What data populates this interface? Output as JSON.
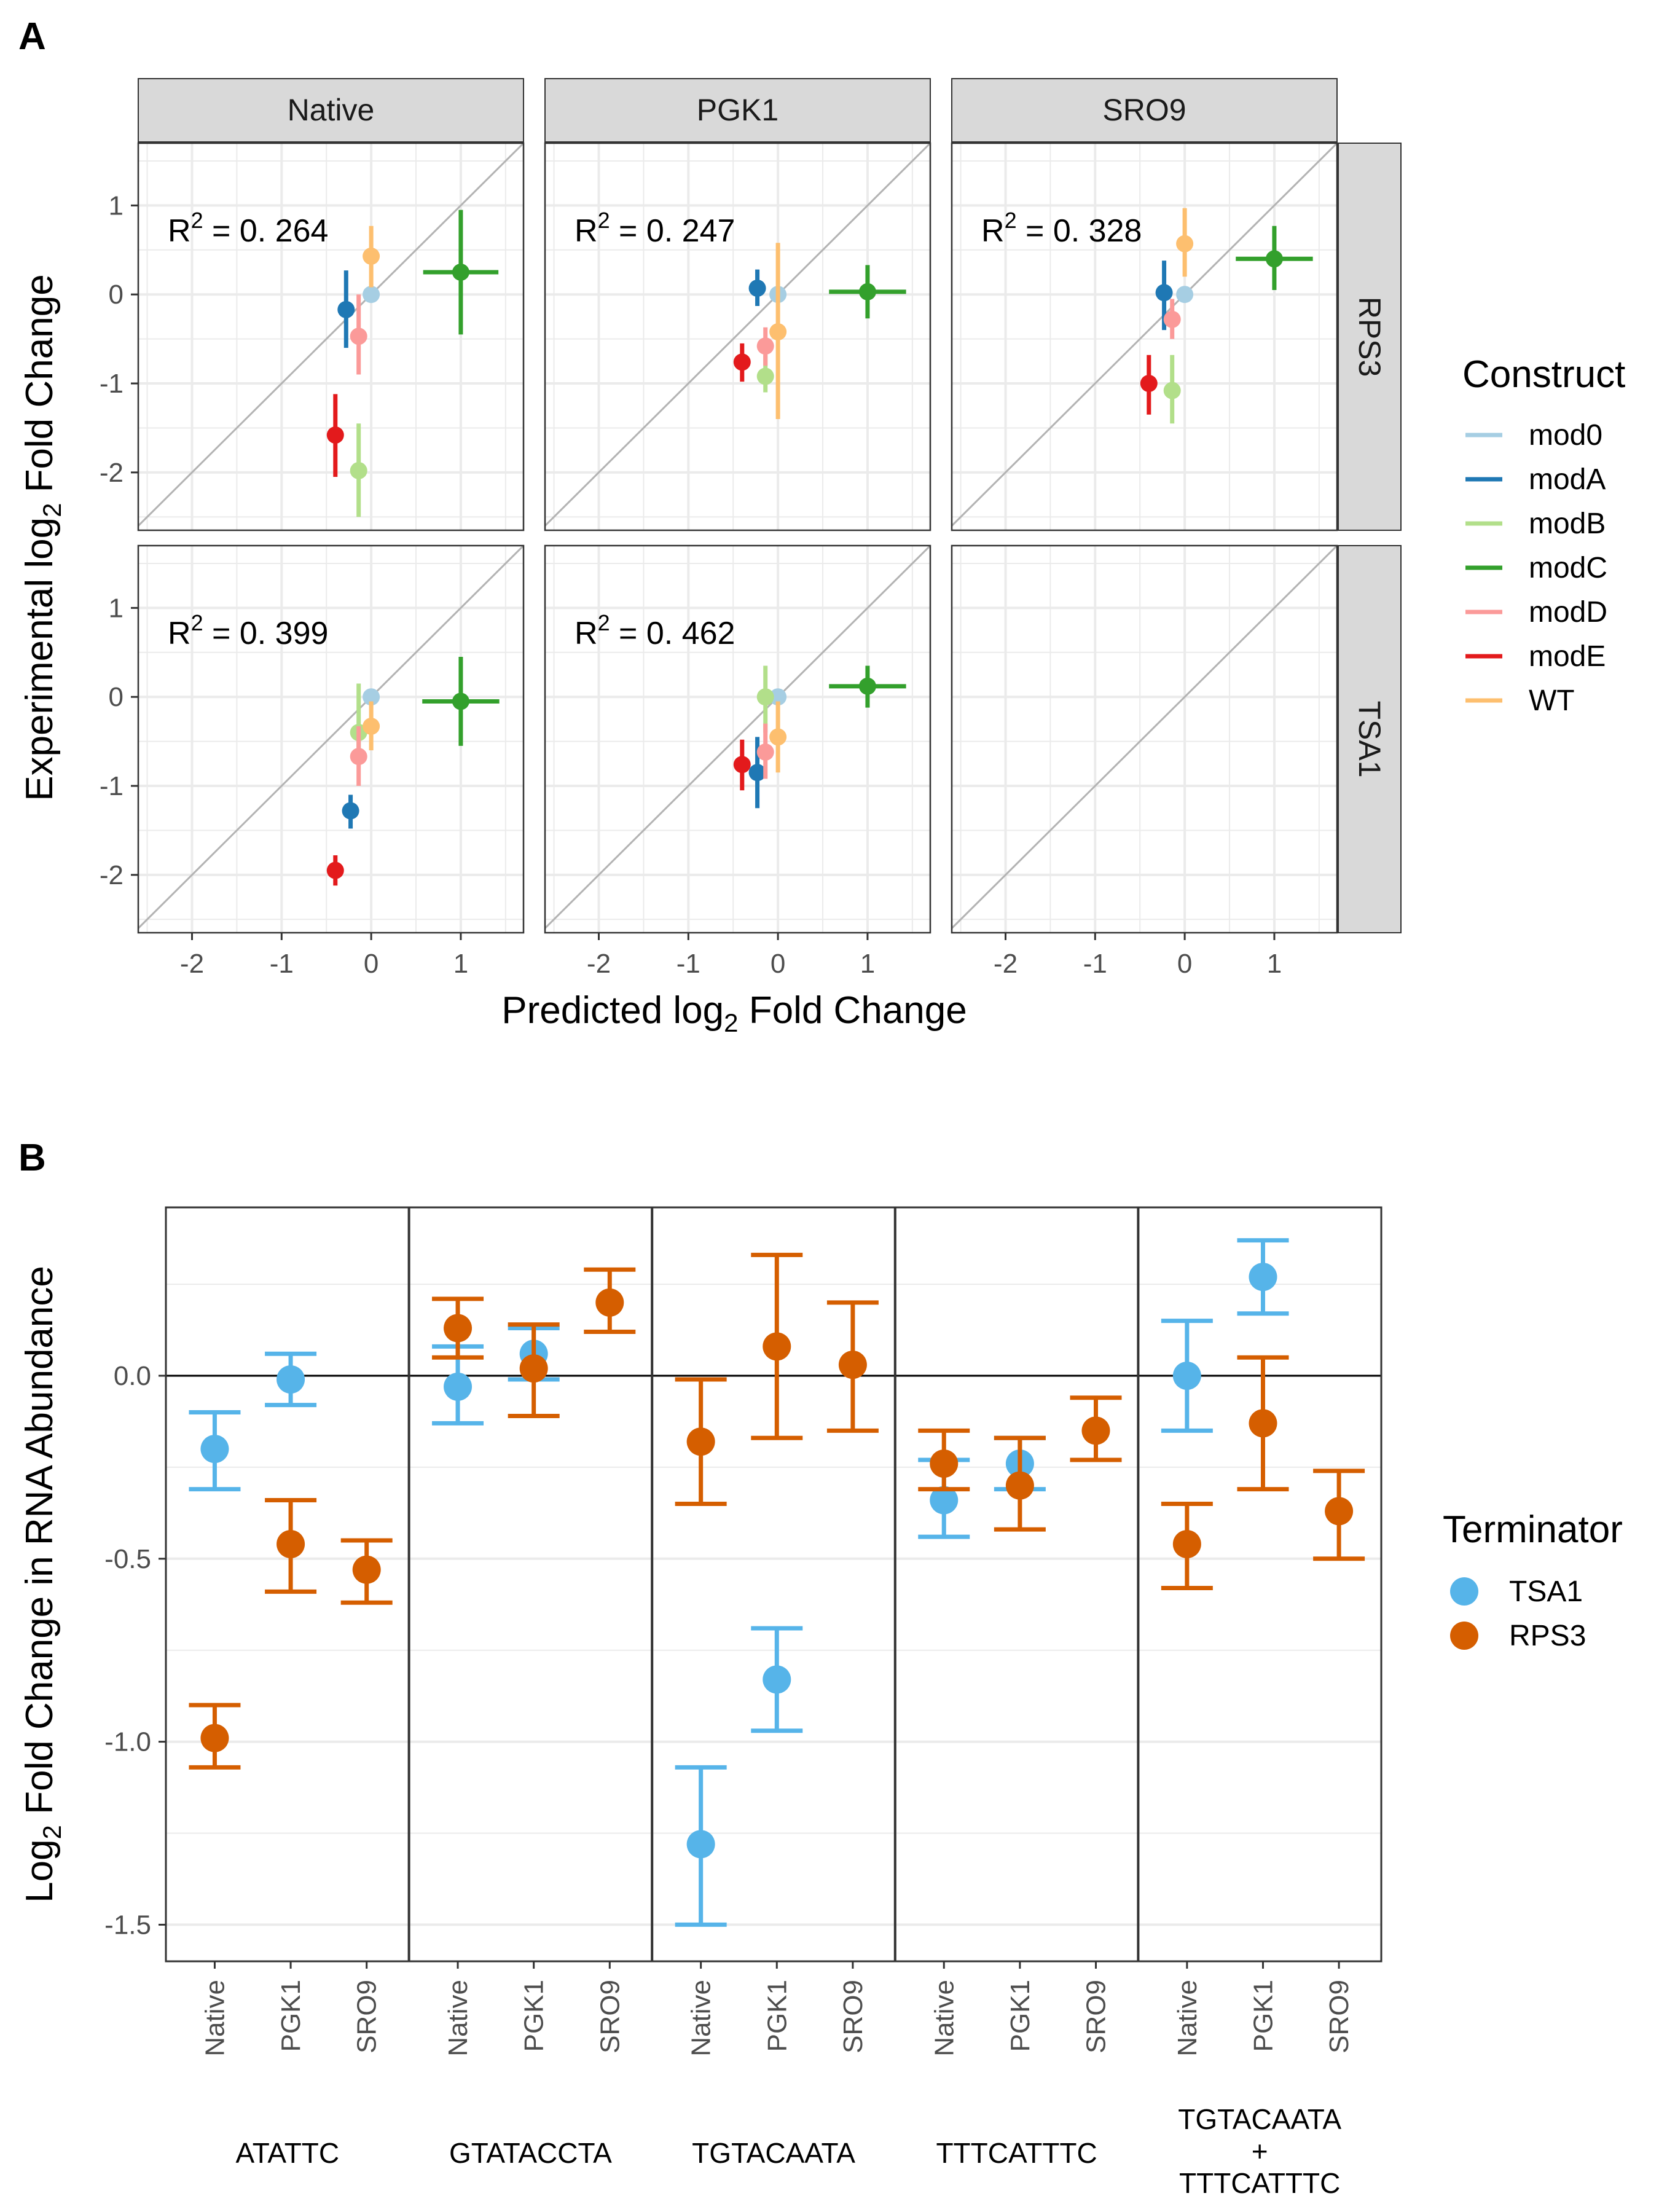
{
  "panel_letters": {
    "a": "A",
    "b": "B"
  },
  "chart_data": [
    {
      "type": "scatter",
      "panel": "A",
      "xlabel": {
        "prefix": "Predicted log",
        "sub": "2",
        "suffix": " Fold Change"
      },
      "ylabel": {
        "prefix": "Experimental log",
        "sub": "2",
        "suffix": " Fold Change"
      },
      "xlim": [
        -2.6,
        1.7
      ],
      "ylim": [
        -2.65,
        1.7
      ],
      "x_ticks": [
        -2,
        -1,
        0,
        1
      ],
      "x_tick_labels": [
        "-2",
        "-1",
        "0",
        "1"
      ],
      "y_ticks": [
        -2,
        -1,
        0,
        1
      ],
      "y_tick_labels": [
        "-2",
        "-1",
        "0",
        "1"
      ],
      "grid": true,
      "reference_line": "y = x",
      "columns": [
        "Native",
        "PGK1",
        "SRO9"
      ],
      "rows": [
        "RPS3",
        "TSA1"
      ],
      "legend": {
        "title": "Construct",
        "placement": "right",
        "entries": [
          {
            "name": "mod0",
            "color": "#A6CEE3"
          },
          {
            "name": "modA",
            "color": "#1F78B4"
          },
          {
            "name": "modB",
            "color": "#B2DF8A"
          },
          {
            "name": "modC",
            "color": "#33A02C"
          },
          {
            "name": "modD",
            "color": "#FB9A99"
          },
          {
            "name": "modE",
            "color": "#E31A1C"
          },
          {
            "name": "WT",
            "color": "#FDBF6F"
          }
        ]
      },
      "r2_prefix": "R",
      "r2_sup": "2",
      "facets": [
        {
          "row": "RPS3",
          "col": "Native",
          "r2_value": " = 0. 264",
          "points": [
            {
              "c": "mod0",
              "x": 0.0,
              "y": 0.0,
              "xe": 0,
              "ye": [
                0,
                0
              ]
            },
            {
              "c": "modA",
              "x": -0.28,
              "y": -0.17,
              "xe": 0,
              "ye": [
                -0.6,
                0.27
              ]
            },
            {
              "c": "modB",
              "x": -0.14,
              "y": -1.98,
              "xe": 0,
              "ye": [
                -2.5,
                -1.45
              ]
            },
            {
              "c": "modC",
              "x": 1.0,
              "y": 0.25,
              "xe": 0.42,
              "ye": [
                -0.45,
                0.95
              ]
            },
            {
              "c": "modD",
              "x": -0.14,
              "y": -0.47,
              "xe": 0,
              "ye": [
                -0.9,
                0.0
              ]
            },
            {
              "c": "modE",
              "x": -0.4,
              "y": -1.58,
              "xe": 0,
              "ye": [
                -2.05,
                -1.12
              ]
            },
            {
              "c": "WT",
              "x": 0.0,
              "y": 0.43,
              "xe": 0,
              "ye": [
                0.08,
                0.77
              ]
            }
          ]
        },
        {
          "row": "RPS3",
          "col": "PGK1",
          "r2_value": " = 0. 247",
          "points": [
            {
              "c": "mod0",
              "x": 0.0,
              "y": 0.0,
              "xe": 0,
              "ye": [
                0,
                0
              ]
            },
            {
              "c": "modA",
              "x": -0.23,
              "y": 0.07,
              "xe": 0,
              "ye": [
                -0.13,
                0.28
              ]
            },
            {
              "c": "modB",
              "x": -0.14,
              "y": -0.92,
              "xe": 0,
              "ye": [
                -1.1,
                -0.68
              ]
            },
            {
              "c": "modC",
              "x": 1.0,
              "y": 0.03,
              "xe": 0.43,
              "ye": [
                -0.27,
                0.33
              ]
            },
            {
              "c": "modD",
              "x": -0.14,
              "y": -0.58,
              "xe": 0,
              "ye": [
                -0.8,
                -0.37
              ]
            },
            {
              "c": "modE",
              "x": -0.4,
              "y": -0.76,
              "xe": 0,
              "ye": [
                -0.98,
                -0.55
              ]
            },
            {
              "c": "WT",
              "x": 0.0,
              "y": -0.42,
              "xe": 0,
              "ye": [
                -1.4,
                0.58
              ]
            }
          ]
        },
        {
          "row": "RPS3",
          "col": "SRO9",
          "r2_value": " = 0. 328",
          "points": [
            {
              "c": "mod0",
              "x": 0.0,
              "y": 0.0,
              "xe": 0,
              "ye": [
                0,
                0
              ]
            },
            {
              "c": "modA",
              "x": -0.23,
              "y": 0.02,
              "xe": 0,
              "ye": [
                -0.4,
                0.38
              ]
            },
            {
              "c": "modB",
              "x": -0.14,
              "y": -1.08,
              "xe": 0,
              "ye": [
                -1.45,
                -0.68
              ]
            },
            {
              "c": "modC",
              "x": 1.0,
              "y": 0.4,
              "xe": 0.43,
              "ye": [
                0.05,
                0.77
              ]
            },
            {
              "c": "modD",
              "x": -0.14,
              "y": -0.28,
              "xe": 0,
              "ye": [
                -0.5,
                -0.05
              ]
            },
            {
              "c": "modE",
              "x": -0.4,
              "y": -1.0,
              "xe": 0,
              "ye": [
                -1.35,
                -0.68
              ]
            },
            {
              "c": "WT",
              "x": 0.0,
              "y": 0.57,
              "xe": 0,
              "ye": [
                0.2,
                0.97
              ]
            }
          ]
        },
        {
          "row": "TSA1",
          "col": "Native",
          "r2_value": " = 0. 399",
          "points": [
            {
              "c": "mod0",
              "x": 0.0,
              "y": 0.0,
              "xe": 0,
              "ye": [
                0,
                0
              ]
            },
            {
              "c": "modA",
              "x": -0.23,
              "y": -1.28,
              "xe": 0,
              "ye": [
                -1.48,
                -1.1
              ]
            },
            {
              "c": "modB",
              "x": -0.14,
              "y": -0.4,
              "xe": 0,
              "ye": [
                -0.75,
                0.15
              ]
            },
            {
              "c": "modC",
              "x": 1.0,
              "y": -0.05,
              "xe": 0.43,
              "ye": [
                -0.55,
                0.45
              ]
            },
            {
              "c": "modD",
              "x": -0.14,
              "y": -0.67,
              "xe": 0,
              "ye": [
                -1.0,
                -0.33
              ]
            },
            {
              "c": "modE",
              "x": -0.4,
              "y": -1.95,
              "xe": 0,
              "ye": [
                -2.12,
                -1.78
              ]
            },
            {
              "c": "WT",
              "x": 0.0,
              "y": -0.33,
              "xe": 0,
              "ye": [
                -0.6,
                -0.05
              ]
            }
          ]
        },
        {
          "row": "TSA1",
          "col": "PGK1",
          "r2_value": " = 0. 462",
          "points": [
            {
              "c": "mod0",
              "x": 0.0,
              "y": 0.0,
              "xe": 0,
              "ye": [
                0,
                0
              ]
            },
            {
              "c": "modA",
              "x": -0.23,
              "y": -0.85,
              "xe": 0,
              "ye": [
                -1.25,
                -0.45
              ]
            },
            {
              "c": "modB",
              "x": -0.14,
              "y": 0.0,
              "xe": 0,
              "ye": [
                -0.4,
                0.35
              ]
            },
            {
              "c": "modC",
              "x": 1.0,
              "y": 0.12,
              "xe": 0.43,
              "ye": [
                -0.12,
                0.35
              ]
            },
            {
              "c": "modD",
              "x": -0.14,
              "y": -0.62,
              "xe": 0,
              "ye": [
                -0.92,
                -0.3
              ]
            },
            {
              "c": "modE",
              "x": -0.4,
              "y": -0.76,
              "xe": 0,
              "ye": [
                -1.05,
                -0.48
              ]
            },
            {
              "c": "WT",
              "x": 0.0,
              "y": -0.45,
              "xe": 0,
              "ye": [
                -0.85,
                -0.05
              ]
            }
          ]
        },
        {
          "row": "TSA1",
          "col": "SRO9",
          "r2_value": "",
          "points": []
        }
      ]
    },
    {
      "type": "scatter",
      "panel": "B",
      "ylabel": {
        "prefix": "Log",
        "sub": "2",
        "suffix": " Fold Change in RNA Abundance"
      },
      "ylim": [
        -1.6,
        0.46
      ],
      "y_ticks": [
        -1.5,
        -1.0,
        -0.5,
        0.0
      ],
      "y_tick_labels": [
        "-1.5",
        "-1.0",
        "-0.5",
        "0.0"
      ],
      "zero_line": true,
      "grid": true,
      "groups": [
        {
          "label": [
            "ATATTC"
          ],
          "sublabels": [
            "Native",
            "PGK1",
            "SRO9"
          ]
        },
        {
          "label": [
            "GTATACCTA"
          ],
          "sublabels": [
            "Native",
            "PGK1",
            "SRO9"
          ]
        },
        {
          "label": [
            "TGTACAATA"
          ],
          "sublabels": [
            "Native",
            "PGK1",
            "SRO9"
          ]
        },
        {
          "label": [
            "TTTCATTTC"
          ],
          "sublabels": [
            "Native",
            "PGK1",
            "SRO9"
          ]
        },
        {
          "label": [
            "TGTACAATA",
            "+",
            "TTTCATTTC"
          ],
          "sublabels": [
            "Native",
            "PGK1",
            "SRO9"
          ]
        }
      ],
      "legend": {
        "title": "Terminator",
        "placement": "right",
        "entries": [
          {
            "name": "TSA1",
            "color": "#56B4E9"
          },
          {
            "name": "RPS3",
            "color": "#D55E00"
          }
        ]
      },
      "series": [
        {
          "name": "TSA1",
          "values": [
            {
              "g": 0,
              "s": 0,
              "y": -0.2,
              "lo": -0.31,
              "hi": -0.1
            },
            {
              "g": 0,
              "s": 1,
              "y": -0.01,
              "lo": -0.08,
              "hi": 0.06
            },
            {
              "g": 1,
              "s": 0,
              "y": -0.03,
              "lo": -0.13,
              "hi": 0.08
            },
            {
              "g": 1,
              "s": 1,
              "y": 0.06,
              "lo": -0.01,
              "hi": 0.13
            },
            {
              "g": 2,
              "s": 0,
              "y": -1.28,
              "lo": -1.5,
              "hi": -1.07
            },
            {
              "g": 2,
              "s": 1,
              "y": -0.83,
              "lo": -0.97,
              "hi": -0.69
            },
            {
              "g": 3,
              "s": 0,
              "y": -0.34,
              "lo": -0.44,
              "hi": -0.23
            },
            {
              "g": 3,
              "s": 1,
              "y": -0.24,
              "lo": -0.31,
              "hi": -0.17
            },
            {
              "g": 4,
              "s": 0,
              "y": 0.0,
              "lo": -0.15,
              "hi": 0.15
            },
            {
              "g": 4,
              "s": 1,
              "y": 0.27,
              "lo": 0.17,
              "hi": 0.37
            }
          ]
        },
        {
          "name": "RPS3",
          "values": [
            {
              "g": 0,
              "s": 0,
              "y": -0.99,
              "lo": -1.07,
              "hi": -0.9
            },
            {
              "g": 0,
              "s": 1,
              "y": -0.46,
              "lo": -0.59,
              "hi": -0.34
            },
            {
              "g": 0,
              "s": 2,
              "y": -0.53,
              "lo": -0.62,
              "hi": -0.45
            },
            {
              "g": 1,
              "s": 0,
              "y": 0.13,
              "lo": 0.05,
              "hi": 0.21
            },
            {
              "g": 1,
              "s": 1,
              "y": 0.02,
              "lo": -0.11,
              "hi": 0.14
            },
            {
              "g": 1,
              "s": 2,
              "y": 0.2,
              "lo": 0.12,
              "hi": 0.29
            },
            {
              "g": 2,
              "s": 0,
              "y": -0.18,
              "lo": -0.35,
              "hi": -0.01
            },
            {
              "g": 2,
              "s": 1,
              "y": 0.08,
              "lo": -0.17,
              "hi": 0.33
            },
            {
              "g": 2,
              "s": 2,
              "y": 0.03,
              "lo": -0.15,
              "hi": 0.2
            },
            {
              "g": 3,
              "s": 0,
              "y": -0.24,
              "lo": -0.31,
              "hi": -0.15
            },
            {
              "g": 3,
              "s": 1,
              "y": -0.3,
              "lo": -0.42,
              "hi": -0.17
            },
            {
              "g": 3,
              "s": 2,
              "y": -0.15,
              "lo": -0.23,
              "hi": -0.06
            },
            {
              "g": 4,
              "s": 0,
              "y": -0.46,
              "lo": -0.58,
              "hi": -0.35
            },
            {
              "g": 4,
              "s": 1,
              "y": -0.13,
              "lo": -0.31,
              "hi": 0.05
            },
            {
              "g": 4,
              "s": 2,
              "y": -0.37,
              "lo": -0.5,
              "hi": -0.26
            }
          ]
        }
      ]
    }
  ]
}
